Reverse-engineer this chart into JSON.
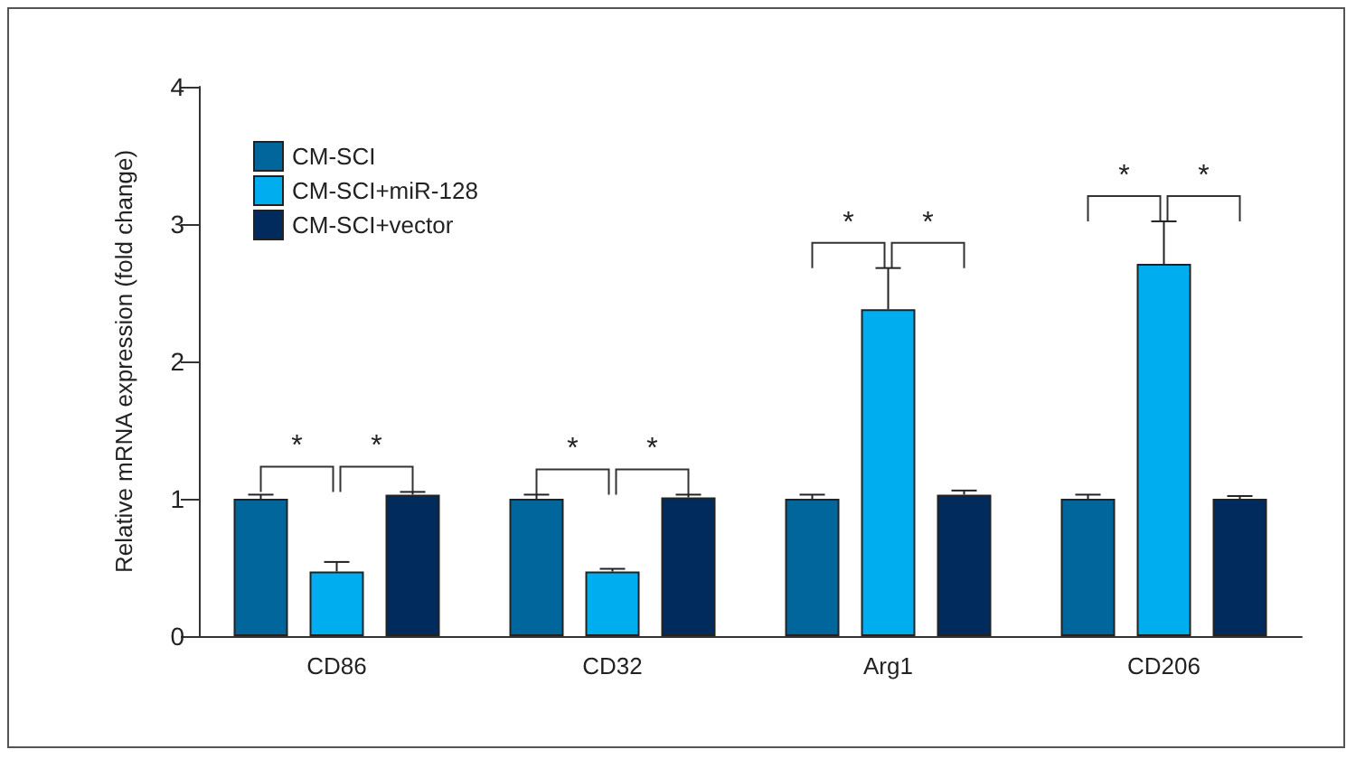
{
  "chart_data": {
    "type": "bar",
    "ylabel": "Relative mRNA expression (fold change)",
    "categories": [
      "CD86",
      "CD32",
      "Arg1",
      "CD206"
    ],
    "series": [
      {
        "name": "CM-SCI",
        "color": "#00669b",
        "values": [
          1.0,
          1.0,
          1.0,
          1.0
        ],
        "errors": [
          0.03,
          0.03,
          0.03,
          0.03
        ]
      },
      {
        "name": "CM-SCI+miR-128",
        "color": "#00aeef",
        "values": [
          0.47,
          0.47,
          2.38,
          2.71
        ],
        "errors": [
          0.07,
          0.02,
          0.3,
          0.31
        ]
      },
      {
        "name": "CM-SCI+vector",
        "color": "#002b5c",
        "values": [
          1.03,
          1.01,
          1.03,
          1.0
        ],
        "errors": [
          0.02,
          0.02,
          0.03,
          0.02
        ]
      }
    ],
    "ylim": [
      0,
      4
    ],
    "yticks": [
      0,
      1,
      2,
      3,
      4
    ],
    "annotations": [
      "*",
      "*",
      "*",
      "*",
      "*",
      "*",
      "*",
      "*"
    ],
    "legend": "top left",
    "grid": false
  }
}
